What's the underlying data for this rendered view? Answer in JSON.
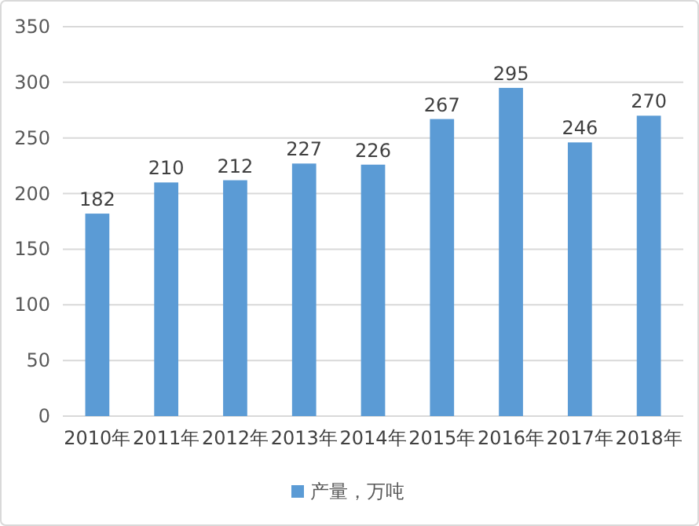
{
  "chart_data": {
    "type": "bar",
    "categories": [
      "2010年",
      "2011年",
      "2012年",
      "2013年",
      "2014年",
      "2015年",
      "2016年",
      "2017年",
      "2018年"
    ],
    "series": [
      {
        "name": "产量，万吨",
        "color": "#5b9bd5",
        "values": [
          182,
          210,
          212,
          227,
          226,
          267,
          295,
          246,
          270
        ]
      }
    ],
    "ylim": [
      0,
      350
    ],
    "yticks": [
      0,
      50,
      100,
      150,
      200,
      250,
      300,
      350
    ],
    "grid": "y",
    "legend": "bottom",
    "data_labels": true
  }
}
